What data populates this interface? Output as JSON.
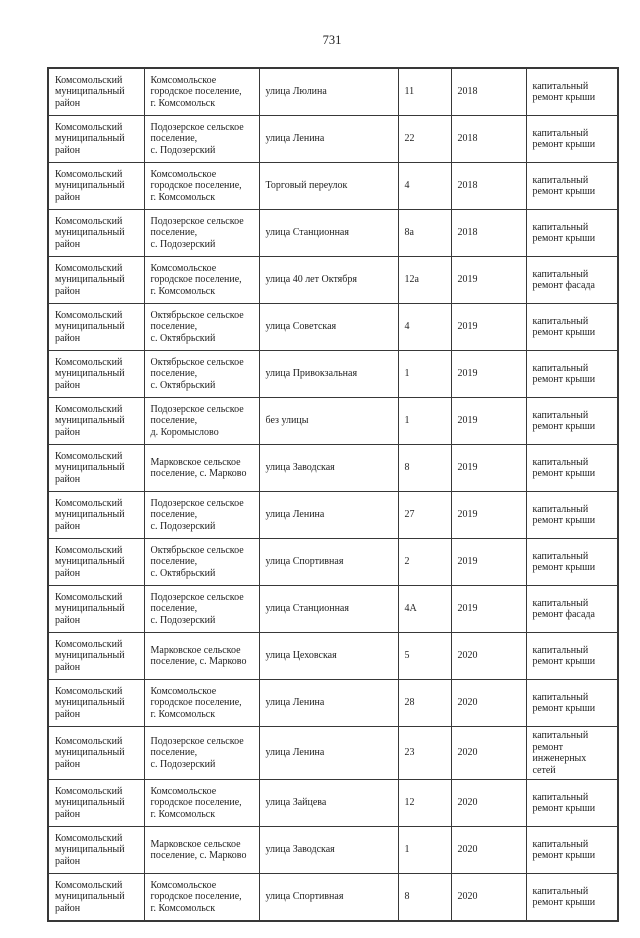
{
  "page": {
    "number": "731"
  },
  "colors": {
    "background": "#ffffff",
    "text": "#1f1f1f",
    "border": "#383838"
  },
  "table": {
    "rows": [
      {
        "district": "Комсомольский\nмуниципальный\nрайон",
        "settlement": "Комсомольское\nгородское поселение,\nг. Комсомольск",
        "street": "улица Люлина",
        "house": "11",
        "year": "2018",
        "work": "капитальный\nремонт крыши"
      },
      {
        "district": "Комсомольский\nмуниципальный\nрайон",
        "settlement": "Подозерское сельское\nпоселение,\nс. Подозерский",
        "street": "улица Ленина",
        "house": "22",
        "year": "2018",
        "work": "капитальный\nремонт крыши"
      },
      {
        "district": "Комсомольский\nмуниципальный\nрайон",
        "settlement": "Комсомольское\nгородское поселение,\nг. Комсомольск",
        "street": "Торговый переулок",
        "house": "4",
        "year": "2018",
        "work": "капитальный\nремонт крыши"
      },
      {
        "district": "Комсомольский\nмуниципальный\nрайон",
        "settlement": "Подозерское сельское\nпоселение,\nс. Подозерский",
        "street": "улица Станционная",
        "house": "8а",
        "year": "2018",
        "work": "капитальный\nремонт крыши"
      },
      {
        "district": "Комсомольский\nмуниципальный\nрайон",
        "settlement": "Комсомольское\nгородское поселение,\nг. Комсомольск",
        "street": "улица 40 лет Октября",
        "house": "12а",
        "year": "2019",
        "work": "капитальный\nремонт фасада"
      },
      {
        "district": "Комсомольский\nмуниципальный\nрайон",
        "settlement": "Октябрьское сельское\nпоселение,\nс. Октябрьский",
        "street": "улица Советская",
        "house": "4",
        "year": "2019",
        "work": "капитальный\nремонт крыши"
      },
      {
        "district": "Комсомольский\nмуниципальный\nрайон",
        "settlement": "Октябрьское сельское\nпоселение,\nс. Октябрьский",
        "street": "улица Привокзальная",
        "house": "1",
        "year": "2019",
        "work": "капитальный\nремонт крыши"
      },
      {
        "district": "Комсомольский\nмуниципальный\nрайон",
        "settlement": "Подозерское сельское\nпоселение,\nд. Коромыслово",
        "street": "без улицы",
        "house": "1",
        "year": "2019",
        "work": "капитальный\nремонт крыши"
      },
      {
        "district": "Комсомольский\nмуниципальный\nрайон",
        "settlement": "Марковское сельское\nпоселение, с. Марково",
        "street": "улица Заводская",
        "house": "8",
        "year": "2019",
        "work": "капитальный\nремонт крыши"
      },
      {
        "district": "Комсомольский\nмуниципальный\nрайон",
        "settlement": "Подозерское сельское\nпоселение,\nс. Подозерский",
        "street": "улица Ленина",
        "house": "27",
        "year": "2019",
        "work": "капитальный\nремонт крыши"
      },
      {
        "district": "Комсомольский\nмуниципальный\nрайон",
        "settlement": "Октябрьское сельское\nпоселение,\nс. Октябрьский",
        "street": "улица Спортивная",
        "house": "2",
        "year": "2019",
        "work": "капитальный\nремонт крыши"
      },
      {
        "district": "Комсомольский\nмуниципальный\nрайон",
        "settlement": "Подозерское сельское\nпоселение,\nс. Подозерский",
        "street": "улица Станционная",
        "house": "4А",
        "year": "2019",
        "work": "капитальный\nремонт фасада"
      },
      {
        "district": "Комсомольский\nмуниципальный\nрайон",
        "settlement": "Марковское сельское\nпоселение, с. Марково",
        "street": "улица Цеховская",
        "house": "5",
        "year": "2020",
        "work": "капитальный\nремонт крыши"
      },
      {
        "district": "Комсомольский\nмуниципальный\nрайон",
        "settlement": "Комсомольское\nгородское поселение,\nг. Комсомольск",
        "street": "улица Ленина",
        "house": "28",
        "year": "2020",
        "work": "капитальный\nремонт крыши"
      },
      {
        "district": "Комсомольский\nмуниципальный\nрайон",
        "settlement": "Подозерское сельское\nпоселение,\nс. Подозерский",
        "street": "улица Ленина",
        "house": "23",
        "year": "2020",
        "work": "капитальный\nремонт\nинженерных\nсетей"
      },
      {
        "district": "Комсомольский\nмуниципальный\nрайон",
        "settlement": "Комсомольское\nгородское поселение,\nг. Комсомольск",
        "street": "улица Зайцева",
        "house": "12",
        "year": "2020",
        "work": "капитальный\nремонт крыши"
      },
      {
        "district": "Комсомольский\nмуниципальный\nрайон",
        "settlement": "Марковское сельское\nпоселение, с. Марково",
        "street": "улица Заводская",
        "house": "1",
        "year": "2020",
        "work": "капитальный\nремонт крыши"
      },
      {
        "district": "Комсомольский\nмуниципальный\nрайон",
        "settlement": "Комсомольское\nгородское поселение,\nг. Комсомольск",
        "street": "улица Спортивная",
        "house": "8",
        "year": "2020",
        "work": "капитальный\nремонт крыши"
      }
    ]
  }
}
